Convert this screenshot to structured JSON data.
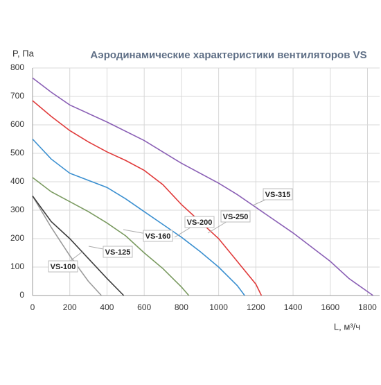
{
  "chart_data": {
    "type": "line",
    "title": "Аэродинамические характеристики вентиляторов VS",
    "y_label": "P, Па",
    "x_label": "L, м³/ч",
    "xlim": [
      0,
      1880
    ],
    "xticks": [
      0,
      200,
      400,
      600,
      800,
      1000,
      1200,
      1400,
      1600,
      1800
    ],
    "ylim": [
      0,
      800
    ],
    "yticks": [
      0,
      100,
      200,
      300,
      400,
      500,
      600,
      700,
      800
    ],
    "grid": true,
    "series": [
      {
        "name": "VS-100",
        "color": "#9a9a9a",
        "x": [
          0,
          100,
          200,
          300,
          370
        ],
        "values": [
          350,
          240,
          140,
          50,
          0
        ]
      },
      {
        "name": "VS-125",
        "color": "#3c3c3c",
        "x": [
          0,
          100,
          200,
          300,
          400,
          490
        ],
        "values": [
          350,
          260,
          200,
          130,
          60,
          0
        ]
      },
      {
        "name": "VS-160",
        "color": "#7a9a60",
        "x": [
          0,
          100,
          200,
          300,
          400,
          500,
          600,
          700,
          800,
          840
        ],
        "values": [
          415,
          365,
          330,
          295,
          255,
          210,
          150,
          95,
          30,
          0
        ]
      },
      {
        "name": "VS-200",
        "color": "#3a8fd0",
        "x": [
          0,
          100,
          200,
          300,
          400,
          500,
          600,
          700,
          800,
          900,
          1000,
          1100,
          1140
        ],
        "values": [
          550,
          480,
          430,
          405,
          380,
          340,
          295,
          250,
          205,
          155,
          100,
          35,
          0
        ]
      },
      {
        "name": "VS-250",
        "color": "#e03a3a",
        "x": [
          0,
          100,
          200,
          300,
          400,
          500,
          600,
          700,
          800,
          900,
          1000,
          1100,
          1200,
          1230
        ],
        "values": [
          685,
          630,
          580,
          540,
          505,
          475,
          440,
          390,
          320,
          260,
          200,
          120,
          40,
          0
        ]
      },
      {
        "name": "VS-315",
        "color": "#8a5fb5",
        "x": [
          0,
          100,
          200,
          400,
          600,
          800,
          1000,
          1100,
          1200,
          1400,
          1600,
          1700,
          1830
        ],
        "values": [
          765,
          715,
          670,
          610,
          545,
          465,
          395,
          355,
          310,
          220,
          120,
          60,
          0
        ]
      }
    ]
  }
}
